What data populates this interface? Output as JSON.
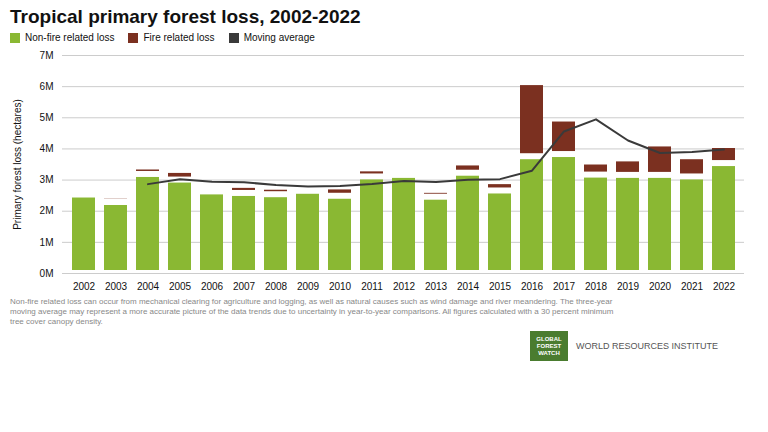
{
  "chart_data": {
    "type": "bar",
    "title": "Tropical primary forest loss, 2002-2022",
    "ylabel": "Primary forest loss (hectares)",
    "stacked": true,
    "grid": true,
    "categories": [
      2002,
      2003,
      2004,
      2005,
      2006,
      2007,
      2008,
      2009,
      2010,
      2011,
      2012,
      2013,
      2014,
      2015,
      2016,
      2017,
      2018,
      2019,
      2020,
      2021,
      2022
    ],
    "series": [
      {
        "name": "Non-fire related loss",
        "type": "bar",
        "color": "#8ab833",
        "values": [
          2520000,
          2280000,
          3180000,
          3000000,
          2620000,
          2570000,
          2530000,
          2640000,
          2480000,
          3100000,
          3150000,
          2450000,
          3220000,
          2650000,
          3750000,
          3820000,
          3160000,
          3150000,
          3150000,
          3100000,
          3530000
        ]
      },
      {
        "name": "Fire related loss",
        "type": "bar",
        "color": "#7b3020",
        "values": [
          190000,
          200000,
          240000,
          310000,
          170000,
          260000,
          240000,
          180000,
          300000,
          260000,
          160000,
          220000,
          330000,
          300000,
          2380000,
          1140000,
          420000,
          530000,
          1010000,
          650000,
          580000
        ]
      },
      {
        "name": "Moving average",
        "type": "line",
        "color": "#3a3a3a",
        "values": [
          null,
          null,
          2870000,
          3030000,
          2950000,
          2930000,
          2840000,
          2790000,
          2810000,
          2870000,
          2970000,
          2940000,
          3010000,
          3030000,
          3300000,
          4560000,
          4950000,
          4270000,
          3870000,
          3900000,
          3980000
        ]
      }
    ],
    "ylim": [
      0,
      7000000
    ],
    "yticks": [
      {
        "value": 0,
        "label": "0M"
      },
      {
        "value": 1000000,
        "label": "1M"
      },
      {
        "value": 2000000,
        "label": "2M"
      },
      {
        "value": 3000000,
        "label": "3M"
      },
      {
        "value": 4000000,
        "label": "4M"
      },
      {
        "value": 5000000,
        "label": "5M"
      },
      {
        "value": 6000000,
        "label": "6M"
      },
      {
        "value": 7000000,
        "label": "7M"
      }
    ],
    "footnote": [
      "Non-fire related loss can occur from mechanical clearing for agriculture and logging, as well as natural causes such as wind damage and river meandering. The three-year",
      "moving average may represent a more accurate picture of the data trends due to uncertainty in year-to-year comparisons. All figures calculated with a 30 percent minimum",
      "tree cover canopy density."
    ],
    "annotations": [
      {
        "text": "GLOBAL\nFOREST\nWATCH",
        "color": "#4a7c2f"
      },
      {
        "text": "WORLD RESOURCES INSTITUTE"
      }
    ]
  }
}
